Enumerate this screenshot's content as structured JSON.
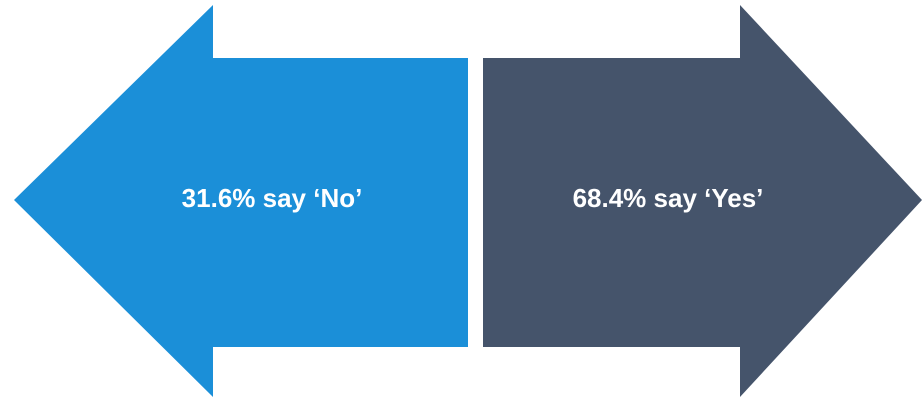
{
  "arrows": [
    {
      "label": "31.6% say ‘No’"
    },
    {
      "label": "68.4% say ‘Yes’"
    }
  ]
}
